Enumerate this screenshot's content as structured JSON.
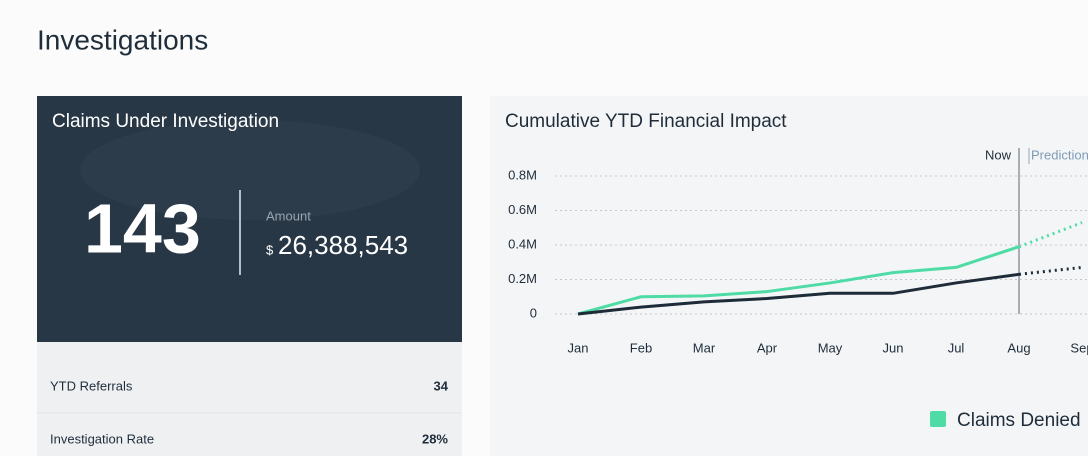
{
  "header": {
    "title": "Investigations"
  },
  "card": {
    "title": "Claims Under Investigation",
    "count": "143",
    "amount_label": "Amount",
    "currency": "$",
    "amount": "26,388,543"
  },
  "stats": [
    {
      "label": "YTD Referrals",
      "value": "34"
    },
    {
      "label": "Investigation Rate",
      "value": "28%"
    }
  ],
  "chart_data": {
    "type": "line",
    "title": "Cumulative YTD Financial Impact",
    "categories": [
      "Jan",
      "Feb",
      "Mar",
      "Apr",
      "May",
      "Jun",
      "Jul",
      "Aug",
      "Sep"
    ],
    "series": [
      {
        "name": "Claims Denied",
        "color": "#4fdba6",
        "values": [
          0,
          0.1,
          0.105,
          0.13,
          0.18,
          0.24,
          0.27,
          0.39,
          0.53
        ]
      },
      {
        "color": "#1e2b38",
        "values": [
          0,
          0.04,
          0.07,
          0.09,
          0.12,
          0.12,
          0.18,
          0.23,
          0.27
        ]
      }
    ],
    "ylim": [
      0,
      0.8
    ],
    "yticks": [
      0,
      {
        "value": 0.2,
        "label": "0.2M"
      },
      {
        "value": 0.4,
        "label": "0.4M"
      },
      {
        "value": 0.6,
        "label": "0.6M"
      },
      {
        "value": 0.8,
        "label": "0.8M"
      }
    ],
    "grid": true,
    "annotation": {
      "label": "Now",
      "at": "Aug",
      "after": "Prediction"
    }
  }
}
